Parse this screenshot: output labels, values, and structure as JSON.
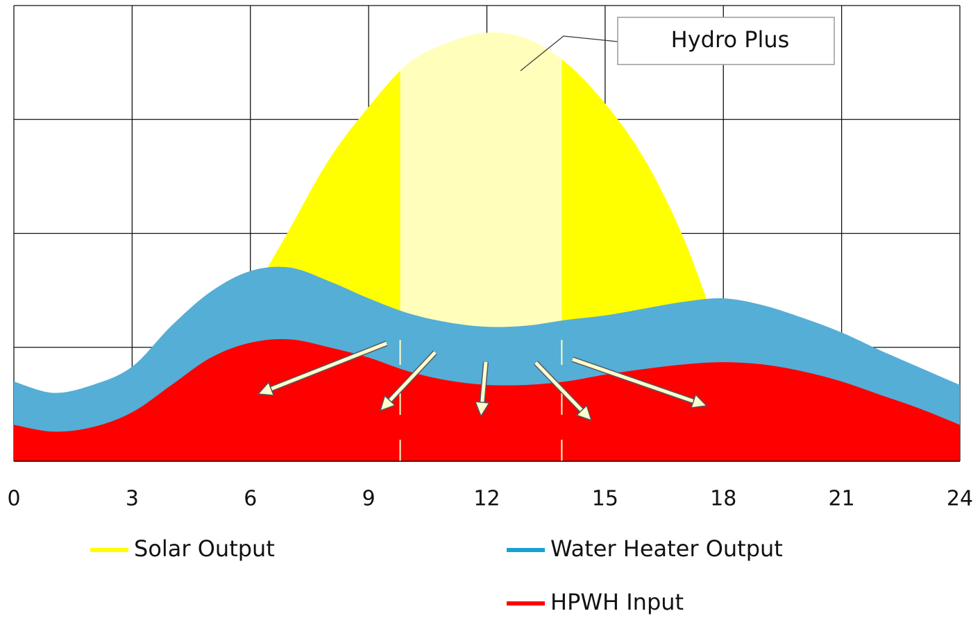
{
  "chart_data": {
    "type": "area",
    "x": [
      0,
      1,
      2,
      3,
      4,
      5,
      6,
      7,
      8,
      9,
      10,
      11,
      12,
      13,
      14,
      15,
      16,
      17,
      18,
      19,
      20,
      21,
      22,
      23,
      24
    ],
    "series": [
      {
        "name": "Solar Output",
        "color": "#ffff00",
        "values": [
          0,
          0,
          0,
          0,
          0,
          0.5,
          1.4,
          2.04,
          2.65,
          3.11,
          3.49,
          3.67,
          3.76,
          3.71,
          3.5,
          3.14,
          2.65,
          1.95,
          1.0,
          0,
          0,
          0,
          0,
          0,
          0
        ]
      },
      {
        "name": "Water Heater Output",
        "color": "#55aed6",
        "legend_color": "#1aa0d8",
        "values": [
          0.7,
          0.6,
          0.67,
          0.83,
          1.19,
          1.49,
          1.67,
          1.7,
          1.58,
          1.43,
          1.3,
          1.22,
          1.18,
          1.19,
          1.24,
          1.28,
          1.34,
          1.4,
          1.43,
          1.37,
          1.26,
          1.13,
          0.97,
          0.82,
          0.67
        ]
      },
      {
        "name": "HPWH Input",
        "color": "#ff0000",
        "values": [
          0.32,
          0.26,
          0.3,
          0.43,
          0.67,
          0.91,
          1.04,
          1.07,
          1.0,
          0.91,
          0.79,
          0.71,
          0.67,
          0.67,
          0.7,
          0.76,
          0.81,
          0.85,
          0.87,
          0.85,
          0.79,
          0.7,
          0.58,
          0.46,
          0.32
        ]
      }
    ],
    "xlim": [
      0,
      24
    ],
    "xticks": [
      0,
      3,
      6,
      9,
      12,
      15,
      18,
      21,
      24
    ],
    "ylim": [
      0,
      4
    ],
    "yticks": [
      0,
      1,
      2,
      3,
      4
    ],
    "show_ytick_labels": false,
    "grid": true,
    "highlight": {
      "x": [
        9.8,
        13.9
      ],
      "color": "#ffffbb",
      "label": "Hydro Plus"
    }
  }
}
